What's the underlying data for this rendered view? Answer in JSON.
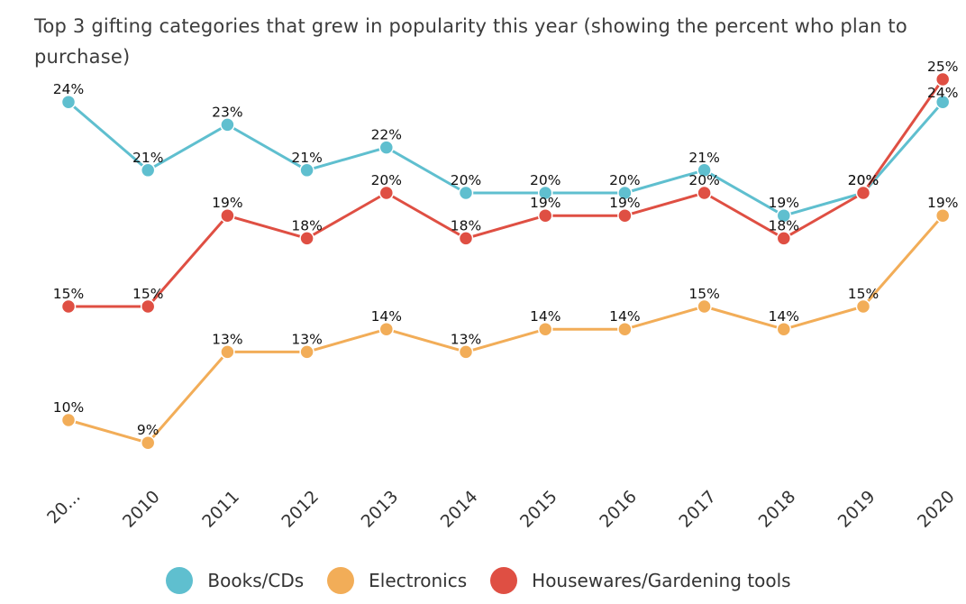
{
  "chart_data": {
    "type": "line",
    "title": "Top 3 gifting categories that grew in popularity this year (showing the percent who plan to purchase)",
    "categories": [
      "20...",
      "2010",
      "2011",
      "2012",
      "2013",
      "2014",
      "2015",
      "2016",
      "2017",
      "2018",
      "2019",
      "2020"
    ],
    "ylim": [
      8,
      25
    ],
    "grid": false,
    "legend_position": "bottom",
    "series": [
      {
        "name": "Books/CDs",
        "color": "#5fbfcf",
        "values": [
          24,
          21,
          23,
          21,
          22,
          20,
          20,
          20,
          21,
          19,
          20,
          24
        ]
      },
      {
        "name": "Electronics",
        "color": "#f2ad58",
        "values": [
          10,
          9,
          13,
          13,
          14,
          13,
          14,
          14,
          15,
          14,
          15,
          19
        ]
      },
      {
        "name": "Housewares/Gardening tools",
        "color": "#df4f43",
        "values": [
          15,
          15,
          19,
          18,
          20,
          18,
          19,
          19,
          20,
          18,
          20,
          25
        ]
      }
    ]
  }
}
